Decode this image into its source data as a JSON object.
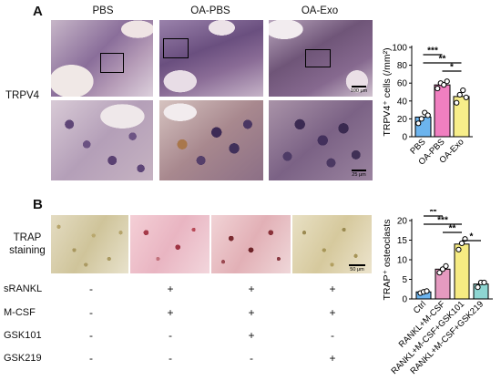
{
  "panel_a": {
    "letter": "A",
    "columns": [
      "PBS",
      "OA-PBS",
      "OA-Exo"
    ],
    "row_label": "TRPV4",
    "scale_top": "100 μm",
    "scale_bottom": "25 μm"
  },
  "panel_b": {
    "letter": "B",
    "row_label_line1": "TRAP",
    "row_label_line2": "staining",
    "scale": "50 μm",
    "treatments": [
      {
        "label": "sRANKL",
        "signs": [
          "-",
          "+",
          "+",
          "+"
        ]
      },
      {
        "label": "M-CSF",
        "signs": [
          "-",
          "+",
          "+",
          "+"
        ]
      },
      {
        "label": "GSK101",
        "signs": [
          "-",
          "-",
          "+",
          "-"
        ]
      },
      {
        "label": "GSK219",
        "signs": [
          "-",
          "-",
          "-",
          "+"
        ]
      }
    ]
  },
  "chart_data": [
    {
      "type": "bar",
      "ylabel": "TRPV4⁺ cells (/mm²)",
      "ylim": [
        0,
        100
      ],
      "yticks": [
        0,
        20,
        40,
        60,
        80,
        100
      ],
      "categories": [
        "PBS",
        "OA-PBS",
        "OA-Exo"
      ],
      "values": [
        22,
        58,
        45
      ],
      "colors": [
        "#6cb4ee",
        "#f07fc0",
        "#f7ee8a"
      ],
      "points": [
        [
          15,
          20,
          27,
          24
        ],
        [
          54,
          60,
          58,
          62
        ],
        [
          38,
          47,
          52,
          44
        ]
      ],
      "significance": [
        {
          "from": 0,
          "to": 1,
          "label": "***"
        },
        {
          "from": 0,
          "to": 2,
          "label": "**"
        },
        {
          "from": 1,
          "to": 2,
          "label": "*"
        }
      ]
    },
    {
      "type": "bar",
      "ylabel": "TRAP⁺ osteoclasts",
      "ylim": [
        0,
        20
      ],
      "yticks": [
        0,
        5,
        10,
        15,
        20
      ],
      "categories": [
        "Ctrl",
        "RANKL+M-CSF",
        "RANKL+M-CSF+GSK101",
        "RANKL+M-CSF+GSK219"
      ],
      "values": [
        1.8,
        7.6,
        14.0,
        3.8
      ],
      "colors": [
        "#6cb4ee",
        "#e59ac0",
        "#f6eb82",
        "#8ed6d2"
      ],
      "points": [
        [
          1.5,
          1.8,
          2.0
        ],
        [
          6.7,
          7.6,
          8.4
        ],
        [
          12.6,
          14.2,
          15.3
        ],
        [
          3.0,
          4.2,
          4.2
        ]
      ],
      "significance": [
        {
          "from": 0,
          "to": 1,
          "label": "**"
        },
        {
          "from": 0,
          "to": 2,
          "label": "***"
        },
        {
          "from": 1,
          "to": 2,
          "label": "**"
        },
        {
          "from": 2,
          "to": 3,
          "label": "*"
        }
      ]
    }
  ]
}
